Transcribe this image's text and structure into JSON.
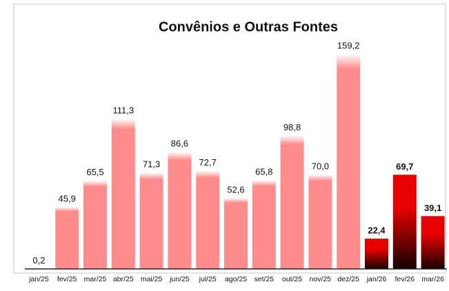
{
  "chart_data": {
    "type": "bar",
    "title": "Convênios e Outras Fontes",
    "categories": [
      "jan/25",
      "fev/25",
      "mar/25",
      "abr/25",
      "mai/25",
      "jun/25",
      "jul/25",
      "ago/25",
      "set/25",
      "out/25",
      "nov/25",
      "dez/25",
      "jan/26",
      "fev/26",
      "mar/26"
    ],
    "values": [
      0.2,
      45.9,
      65.5,
      111.3,
      71.3,
      86.6,
      72.7,
      52.6,
      65.8,
      98.8,
      70.0,
      159.2,
      22.4,
      69.7,
      39.1
    ],
    "value_labels": [
      "0,2",
      "45,9",
      "65,5",
      "111,3",
      "71,3",
      "86,6",
      "72,7",
      "52,6",
      "65,8",
      "98,8",
      "70,0",
      "159,2",
      "22,4",
      "69,7",
      "39,1"
    ],
    "colors": [
      "#ff8c8c",
      "#ff8c8c",
      "#ff8c8c",
      "#ff8c8c",
      "#ff8c8c",
      "#ff8c8c",
      "#ff8c8c",
      "#ff8c8c",
      "#ff8c8c",
      "#ff8c8c",
      "#ff8c8c",
      "#ff8c8c",
      "#e60000",
      "#e60000",
      "#e60000"
    ]
  }
}
